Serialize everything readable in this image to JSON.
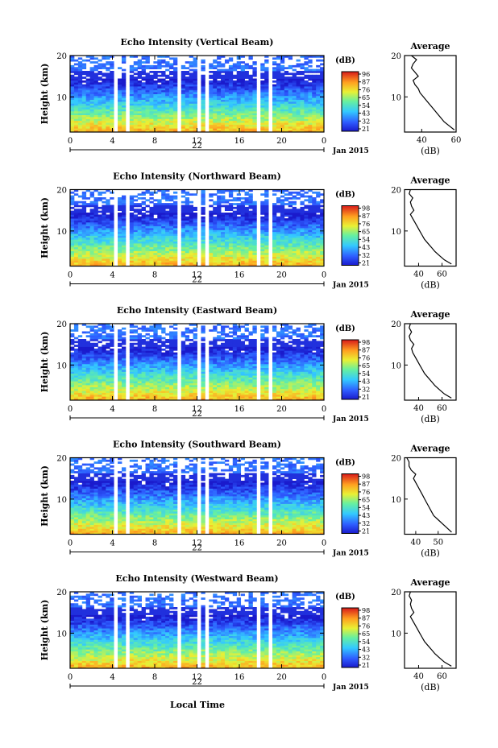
{
  "figure": {
    "bottom_xlabel": "Local Time",
    "date_label": "Jan 2015",
    "day_label": "22"
  },
  "chart_data": [
    {
      "type": "heatmap",
      "title": "Echo Intensity (Vertical Beam)",
      "ylabel": "Height (km)",
      "xlabel": "Local Time",
      "x_ticks": [
        "0",
        "4",
        "8",
        "12",
        "16",
        "20",
        "0"
      ],
      "xlim": [
        0,
        24
      ],
      "y_ticks": [
        "10",
        "20"
      ],
      "ylim": [
        1.5,
        20
      ],
      "colorbar": {
        "unit": "(dB)",
        "ticks": [
          "96",
          "87",
          "76",
          "65",
          "54",
          "43",
          "32",
          "21"
        ]
      },
      "profile": {
        "title": "Average",
        "xlabel": "(dB)",
        "x_ticks": [
          "40",
          "60"
        ],
        "xlim": [
          30,
          60
        ],
        "heights": [
          2,
          3,
          4,
          5,
          6,
          7,
          8,
          9,
          10,
          11,
          12,
          13,
          14,
          15,
          16,
          17,
          18,
          19,
          20
        ],
        "values": [
          59,
          56,
          53,
          51,
          49,
          47,
          45,
          43,
          41,
          39,
          38,
          36,
          35,
          38,
          36,
          34,
          35,
          37,
          34
        ]
      }
    },
    {
      "type": "heatmap",
      "title": "Echo Intensity (Northward Beam)",
      "ylabel": "Height (km)",
      "xlabel": "Local Time",
      "x_ticks": [
        "0",
        "4",
        "8",
        "12",
        "16",
        "20",
        "0"
      ],
      "xlim": [
        0,
        24
      ],
      "y_ticks": [
        "10",
        "20"
      ],
      "ylim": [
        1.5,
        20
      ],
      "colorbar": {
        "unit": "(dB)",
        "ticks": [
          "98",
          "87",
          "76",
          "65",
          "54",
          "43",
          "32",
          "21"
        ]
      },
      "profile": {
        "title": "Average",
        "xlabel": "(dB)",
        "x_ticks": [
          "40",
          "60"
        ],
        "xlim": [
          28,
          72
        ],
        "heights": [
          2,
          3,
          4,
          5,
          6,
          7,
          8,
          9,
          10,
          11,
          12,
          13,
          14,
          15,
          16,
          17,
          18,
          19,
          20
        ],
        "values": [
          68,
          62,
          58,
          54,
          51,
          48,
          45,
          43,
          41,
          39,
          37,
          35,
          33,
          36,
          34,
          33,
          35,
          32,
          33
        ]
      }
    },
    {
      "type": "heatmap",
      "title": "Echo Intensity (Eastward Beam)",
      "ylabel": "Height (km)",
      "xlabel": "Local Time",
      "x_ticks": [
        "0",
        "4",
        "8",
        "12",
        "16",
        "20",
        "0"
      ],
      "xlim": [
        0,
        24
      ],
      "y_ticks": [
        "10",
        "20"
      ],
      "ylim": [
        1.5,
        20
      ],
      "colorbar": {
        "unit": "(dB)",
        "ticks": [
          "98",
          "87",
          "76",
          "65",
          "54",
          "43",
          "32",
          "21"
        ]
      },
      "profile": {
        "title": "Average",
        "xlabel": "(dB)",
        "x_ticks": [
          "40",
          "60"
        ],
        "xlim": [
          28,
          72
        ],
        "heights": [
          2,
          3,
          4,
          5,
          6,
          7,
          8,
          9,
          10,
          11,
          12,
          13,
          14,
          15,
          16,
          17,
          18,
          19,
          20
        ],
        "values": [
          68,
          62,
          58,
          54,
          51,
          48,
          45,
          43,
          41,
          39,
          37,
          35,
          34,
          36,
          33,
          32,
          34,
          32,
          33
        ]
      }
    },
    {
      "type": "heatmap",
      "title": "Echo Intensity (Southward Beam)",
      "ylabel": "Height (km)",
      "xlabel": "Local Time",
      "x_ticks": [
        "0",
        "4",
        "8",
        "12",
        "16",
        "20",
        "0"
      ],
      "xlim": [
        0,
        24
      ],
      "y_ticks": [
        "10",
        "20"
      ],
      "ylim": [
        1.5,
        20
      ],
      "colorbar": {
        "unit": "(dB)",
        "ticks": [
          "98",
          "87",
          "76",
          "65",
          "54",
          "43",
          "32",
          "21"
        ]
      },
      "profile": {
        "title": "Average",
        "xlabel": "(dB)",
        "x_ticks": [
          "40",
          "50"
        ],
        "xlim": [
          35,
          58
        ],
        "heights": [
          2,
          3,
          4,
          5,
          6,
          7,
          8,
          9,
          10,
          11,
          12,
          13,
          14,
          15,
          16,
          17,
          18,
          19,
          20
        ],
        "values": [
          56,
          54,
          52,
          50,
          48,
          47,
          46,
          45,
          44,
          43,
          42,
          41,
          40,
          39,
          40,
          38,
          37,
          37,
          36
        ]
      }
    },
    {
      "type": "heatmap",
      "title": "Echo Intensity (Westward Beam)",
      "ylabel": "Height (km)",
      "xlabel": "Local Time",
      "x_ticks": [
        "0",
        "4",
        "8",
        "12",
        "16",
        "20",
        "0"
      ],
      "xlim": [
        0,
        24
      ],
      "y_ticks": [
        "10",
        "20"
      ],
      "ylim": [
        1.5,
        20
      ],
      "colorbar": {
        "unit": "(dB)",
        "ticks": [
          "98",
          "87",
          "76",
          "65",
          "54",
          "43",
          "32",
          "21"
        ]
      },
      "profile": {
        "title": "Average",
        "xlabel": "(dB)",
        "x_ticks": [
          "40",
          "60"
        ],
        "xlim": [
          28,
          72
        ],
        "heights": [
          2,
          3,
          4,
          5,
          6,
          7,
          8,
          9,
          10,
          11,
          12,
          13,
          14,
          15,
          16,
          17,
          18,
          19,
          20
        ],
        "values": [
          68,
          62,
          58,
          54,
          51,
          48,
          45,
          43,
          41,
          39,
          37,
          35,
          33,
          36,
          34,
          33,
          34,
          32,
          33
        ]
      }
    }
  ]
}
